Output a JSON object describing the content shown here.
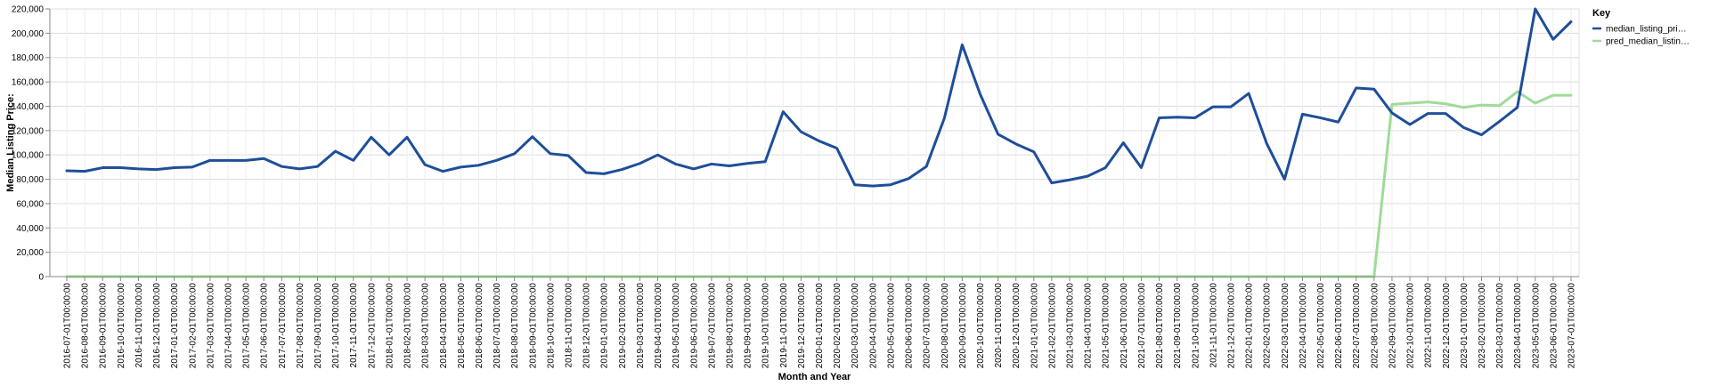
{
  "chart_data": {
    "type": "line",
    "xlabel": "Month and Year",
    "ylabel": "Median Listing Price:",
    "ylim": [
      0,
      220000
    ],
    "yticks": [
      0,
      20000,
      40000,
      60000,
      80000,
      100000,
      120000,
      140000,
      160000,
      180000,
      200000,
      220000
    ],
    "ytick_labels": [
      "0",
      "20,000",
      "40,000",
      "60,000",
      "80,000",
      "100,000",
      "120,000",
      "140,000",
      "160,000",
      "180,000",
      "200,000",
      "220,000"
    ],
    "grid": true,
    "legend": {
      "title": "Key",
      "placement": "right"
    },
    "x": [
      "2016-07-01T00:00:00",
      "2016-08-01T00:00:00",
      "2016-09-01T00:00:00",
      "2016-10-01T00:00:00",
      "2016-11-01T00:00:00",
      "2016-12-01T00:00:00",
      "2017-01-01T00:00:00",
      "2017-02-01T00:00:00",
      "2017-03-01T00:00:00",
      "2017-04-01T00:00:00",
      "2017-05-01T00:00:00",
      "2017-06-01T00:00:00",
      "2017-07-01T00:00:00",
      "2017-08-01T00:00:00",
      "2017-09-01T00:00:00",
      "2017-10-01T00:00:00",
      "2017-11-01T00:00:00",
      "2017-12-01T00:00:00",
      "2018-01-01T00:00:00",
      "2018-02-01T00:00:00",
      "2018-03-01T00:00:00",
      "2018-04-01T00:00:00",
      "2018-05-01T00:00:00",
      "2018-06-01T00:00:00",
      "2018-07-01T00:00:00",
      "2018-08-01T00:00:00",
      "2018-09-01T00:00:00",
      "2018-10-01T00:00:00",
      "2018-11-01T00:00:00",
      "2018-12-01T00:00:00",
      "2019-01-01T00:00:00",
      "2019-02-01T00:00:00",
      "2019-03-01T00:00:00",
      "2019-04-01T00:00:00",
      "2019-05-01T00:00:00",
      "2019-06-01T00:00:00",
      "2019-07-01T00:00:00",
      "2019-08-01T00:00:00",
      "2019-09-01T00:00:00",
      "2019-10-01T00:00:00",
      "2019-11-01T00:00:00",
      "2019-12-01T00:00:00",
      "2020-01-01T00:00:00",
      "2020-02-01T00:00:00",
      "2020-03-01T00:00:00",
      "2020-04-01T00:00:00",
      "2020-05-01T00:00:00",
      "2020-06-01T00:00:00",
      "2020-07-01T00:00:00",
      "2020-08-01T00:00:00",
      "2020-09-01T00:00:00",
      "2020-10-01T00:00:00",
      "2020-11-01T00:00:00",
      "2020-12-01T00:00:00",
      "2021-01-01T00:00:00",
      "2021-02-01T00:00:00",
      "2021-03-01T00:00:00",
      "2021-04-01T00:00:00",
      "2021-05-01T00:00:00",
      "2021-06-01T00:00:00",
      "2021-07-01T00:00:00",
      "2021-08-01T00:00:00",
      "2021-09-01T00:00:00",
      "2021-10-01T00:00:00",
      "2021-11-01T00:00:00",
      "2021-12-01T00:00:00",
      "2022-01-01T00:00:00",
      "2022-02-01T00:00:00",
      "2022-03-01T00:00:00",
      "2022-04-01T00:00:00",
      "2022-05-01T00:00:00",
      "2022-06-01T00:00:00",
      "2022-07-01T00:00:00",
      "2022-08-01T00:00:00",
      "2022-09-01T00:00:00",
      "2022-10-01T00:00:00",
      "2022-11-01T00:00:00",
      "2022-12-01T00:00:00",
      "2023-01-01T00:00:00",
      "2023-02-01T00:00:00",
      "2023-03-01T00:00:00",
      "2023-04-01T00:00:00",
      "2023-05-01T00:00:00",
      "2023-06-01T00:00:00",
      "2023-07-01T00:00:00"
    ],
    "series": [
      {
        "name": "median_listing_pri…",
        "color": "#1f4e99",
        "values": [
          87000,
          86500,
          89500,
          89500,
          88500,
          88000,
          89500,
          90000,
          95500,
          95500,
          95500,
          97000,
          90500,
          88500,
          90500,
          103000,
          95500,
          114500,
          100000,
          114500,
          92000,
          86500,
          90000,
          91500,
          95500,
          101000,
          115000,
          101000,
          99500,
          85500,
          84500,
          88000,
          93000,
          100000,
          92500,
          88500,
          92500,
          91000,
          93000,
          94500,
          135500,
          119000,
          111500,
          105500,
          75500,
          74500,
          75500,
          80500,
          90500,
          130000,
          190500,
          150000,
          117000,
          109000,
          102500,
          77000,
          79500,
          82500,
          89500,
          110000,
          89500,
          130500,
          131000,
          130500,
          139500,
          139500,
          150500,
          109500,
          80000,
          133500,
          130500,
          127000,
          155000,
          154000,
          134500,
          125000,
          134000,
          134000,
          122500,
          116500,
          127500,
          139000,
          220000,
          195000,
          209500
        ]
      },
      {
        "name": "pred_median_listin…",
        "color": "#9fdb98",
        "values": [
          0,
          0,
          0,
          0,
          0,
          0,
          0,
          0,
          0,
          0,
          0,
          0,
          0,
          0,
          0,
          0,
          0,
          0,
          0,
          0,
          0,
          0,
          0,
          0,
          0,
          0,
          0,
          0,
          0,
          0,
          0,
          0,
          0,
          0,
          0,
          0,
          0,
          0,
          0,
          0,
          0,
          0,
          0,
          0,
          0,
          0,
          0,
          0,
          0,
          0,
          0,
          0,
          0,
          0,
          0,
          0,
          0,
          0,
          0,
          0,
          0,
          0,
          0,
          0,
          0,
          0,
          0,
          0,
          0,
          0,
          0,
          0,
          0,
          0,
          141500,
          142500,
          143500,
          142000,
          139000,
          141000,
          140500,
          152000,
          142500,
          149000,
          149000
        ]
      }
    ]
  }
}
